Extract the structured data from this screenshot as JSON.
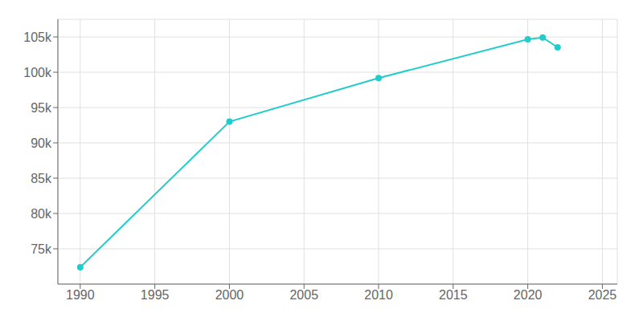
{
  "chart_data": {
    "type": "line",
    "x": [
      1990,
      2000,
      2010,
      2020,
      2021,
      2022
    ],
    "values": [
      72388,
      93000,
      99171,
      104661,
      104913,
      103526
    ],
    "color": "#22CCCC",
    "marker": "circle",
    "xlim": [
      1988.5,
      2026
    ],
    "ylim": [
      70000,
      107500
    ],
    "xticks": [
      1990,
      1995,
      2000,
      2005,
      2010,
      2015,
      2020,
      2025
    ],
    "yticks": [
      {
        "value": 75000,
        "label": "75k"
      },
      {
        "value": 80000,
        "label": "80k"
      },
      {
        "value": 85000,
        "label": "85k"
      },
      {
        "value": 90000,
        "label": "90k"
      },
      {
        "value": 95000,
        "label": "95k"
      },
      {
        "value": 100000,
        "label": "100k"
      },
      {
        "value": 105000,
        "label": "105k"
      }
    ],
    "grid": true
  }
}
